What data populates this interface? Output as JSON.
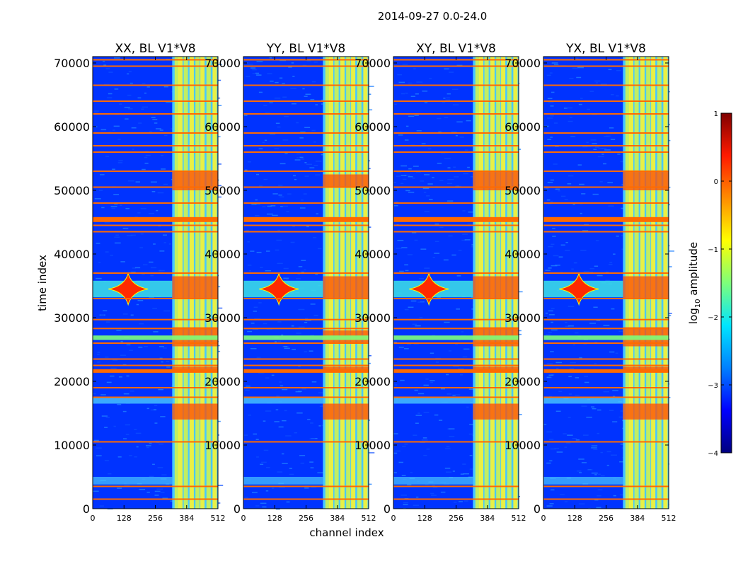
{
  "figure": {
    "suptitle": "2014-09-27 0.0-24.0",
    "xlabel": "channel index",
    "ylabel": "time index"
  },
  "colors": {
    "background": "#0033ff",
    "flag": "#ff6a00",
    "axis": "#000000"
  },
  "chart_data": [
    {
      "type": "heatmap",
      "title": "XX, BL V1*V8",
      "xlim": [
        0,
        512
      ],
      "ylim": [
        0,
        71000
      ],
      "xticks": [
        0,
        128,
        256,
        384,
        512
      ],
      "yticks": [
        0,
        10000,
        20000,
        30000,
        40000,
        50000,
        60000,
        70000
      ],
      "ytick_labels": [
        "0",
        "10000",
        "20000",
        "30000",
        "40000",
        "50000",
        "60000",
        "70000"
      ],
      "rfi_channel_band": [
        325,
        512
      ],
      "strong_time_bands": [
        [
          21500,
          22300
        ],
        [
          25500,
          28500
        ],
        [
          33000,
          36500
        ],
        [
          50000,
          53000
        ],
        [
          14000,
          16500
        ]
      ]
    },
    {
      "type": "heatmap",
      "title": "YY, BL V1*V8",
      "xlim": [
        0,
        512
      ],
      "ylim": [
        0,
        71000
      ],
      "xticks": [
        0,
        128,
        256,
        384,
        512
      ],
      "yticks": [
        0,
        10000,
        20000,
        30000,
        40000,
        50000,
        60000,
        70000
      ],
      "ytick_labels": [
        "0",
        "10000",
        "20000",
        "30000",
        "40000",
        "50000",
        "60000",
        "70000"
      ],
      "rfi_channel_band": [
        325,
        512
      ],
      "strong_time_bands": [
        [
          21500,
          22300
        ],
        [
          26000,
          28000
        ],
        [
          33000,
          36500
        ],
        [
          50500,
          52500
        ],
        [
          14000,
          16500
        ]
      ]
    },
    {
      "type": "heatmap",
      "title": "XY, BL V1*V8",
      "xlim": [
        0,
        512
      ],
      "ylim": [
        0,
        71000
      ],
      "xticks": [
        0,
        128,
        256,
        384,
        512
      ],
      "yticks": [
        0,
        10000,
        20000,
        30000,
        40000,
        50000,
        60000,
        70000
      ],
      "ytick_labels": [
        "0",
        "10000",
        "20000",
        "30000",
        "40000",
        "50000",
        "60000",
        "70000"
      ],
      "rfi_channel_band": [
        325,
        512
      ],
      "strong_time_bands": [
        [
          21500,
          22300
        ],
        [
          25500,
          28500
        ],
        [
          33000,
          36500
        ],
        [
          50000,
          53000
        ],
        [
          14000,
          16500
        ]
      ]
    },
    {
      "type": "heatmap",
      "title": "YX, BL V1*V8",
      "xlim": [
        0,
        512
      ],
      "ylim": [
        0,
        71000
      ],
      "xticks": [
        0,
        128,
        256,
        384,
        512
      ],
      "yticks": [
        0,
        10000,
        20000,
        30000,
        40000,
        50000,
        60000,
        70000
      ],
      "ytick_labels": [
        "0",
        "10000",
        "20000",
        "30000",
        "40000",
        "50000",
        "60000",
        "70000"
      ],
      "rfi_channel_band": [
        325,
        512
      ],
      "strong_time_bands": [
        [
          21500,
          22300
        ],
        [
          25500,
          28500
        ],
        [
          33000,
          36500
        ],
        [
          50000,
          53000
        ],
        [
          14000,
          16500
        ]
      ]
    }
  ],
  "flag_rows": [
    1500,
    3500,
    10500,
    17500,
    19000,
    21800,
    22500,
    23500,
    26000,
    28300,
    29700,
    33000,
    37000,
    43500,
    44500,
    45500,
    48000,
    50500,
    53000,
    56000,
    57000,
    59000,
    62000,
    64000,
    66500,
    69500,
    70500
  ],
  "colorbar": {
    "label": "log10 amplitude",
    "label_main": "log",
    "label_sub": "10",
    "label_rest": " amplitude",
    "range": [
      -4,
      1
    ],
    "ticks": [
      1,
      0,
      -1,
      -2,
      -3,
      -4
    ],
    "tick_labels": [
      "1",
      "0",
      "−1",
      "−2",
      "−3",
      "−4"
    ],
    "stops": [
      "#00007f",
      "#0000ff",
      "#0080ff",
      "#00e5ff",
      "#7dff7a",
      "#ffff00",
      "#ff8c00",
      "#ff1a00",
      "#7f0000"
    ]
  }
}
